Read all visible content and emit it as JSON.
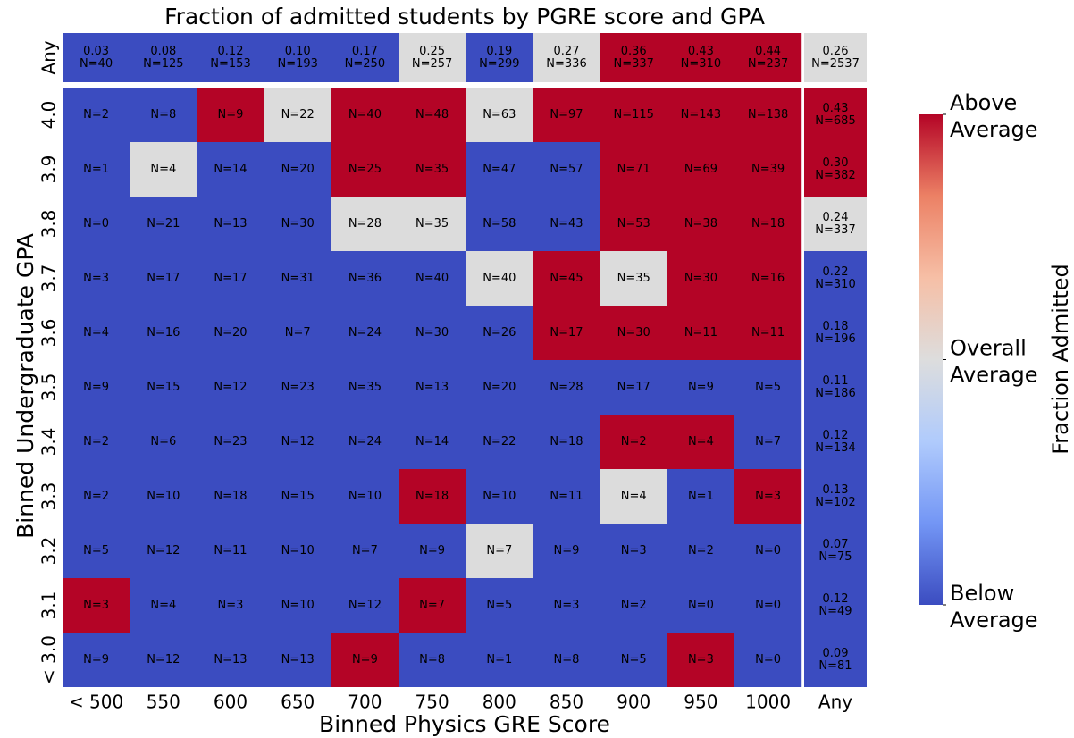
{
  "chart_data": {
    "type": "heatmap",
    "title": "Fraction of admitted students by PGRE score and GPA",
    "xlabel": "Binned Physics GRE Score",
    "ylabel": "Binned Undergraduate GPA",
    "x_categories": [
      "< 500",
      "550",
      "600",
      "650",
      "700",
      "750",
      "800",
      "850",
      "900",
      "950",
      "1000"
    ],
    "x_total_label": "Any",
    "y_categories": [
      "4.0",
      "3.9",
      "3.8",
      "3.7",
      "3.6",
      "3.5",
      "3.4",
      "3.3",
      "3.2",
      "3.1",
      "< 3.0"
    ],
    "y_total_label": "Any",
    "counts": [
      [
        2,
        8,
        9,
        22,
        40,
        48,
        63,
        97,
        115,
        143,
        138
      ],
      [
        1,
        4,
        14,
        20,
        25,
        35,
        47,
        57,
        71,
        69,
        39
      ],
      [
        0,
        21,
        13,
        30,
        28,
        35,
        58,
        43,
        53,
        38,
        18
      ],
      [
        3,
        17,
        17,
        31,
        36,
        40,
        40,
        45,
        35,
        30,
        16
      ],
      [
        4,
        16,
        20,
        7,
        24,
        30,
        26,
        17,
        30,
        11,
        11
      ],
      [
        9,
        15,
        12,
        23,
        35,
        13,
        20,
        28,
        17,
        9,
        5
      ],
      [
        2,
        6,
        23,
        12,
        24,
        14,
        22,
        18,
        2,
        4,
        7
      ],
      [
        2,
        10,
        18,
        15,
        10,
        18,
        10,
        11,
        4,
        1,
        3
      ],
      [
        5,
        12,
        11,
        10,
        7,
        9,
        7,
        9,
        3,
        2,
        0
      ],
      [
        3,
        4,
        3,
        10,
        12,
        7,
        5,
        3,
        2,
        0,
        0
      ],
      [
        9,
        12,
        13,
        13,
        9,
        8,
        1,
        8,
        5,
        3,
        0
      ]
    ],
    "count_labels": [
      [
        "N=2",
        "N=8",
        "N=9",
        "N=22",
        "N=40",
        "N=48",
        "N=63",
        "N=97",
        "N=115",
        "N=143",
        "N=138"
      ],
      [
        "N=1",
        "N=4",
        "N=14",
        "N=20",
        "N=25",
        "N=35",
        "N=47",
        "N=57",
        "N=71",
        "N=69",
        "N=39"
      ],
      [
        "N=0",
        "N=21",
        "N=13",
        "N=30",
        "N=28",
        "N=35",
        "N=58",
        "N=43",
        "N=53",
        "N=38",
        "N=18"
      ],
      [
        "N=3",
        "N=17",
        "N=17",
        "N=31",
        "N=36",
        "N=40",
        "N=40",
        "N=45",
        "N=35",
        "N=30",
        "N=16"
      ],
      [
        "N=4",
        "N=16",
        "N=20",
        "N=7",
        "N=24",
        "N=30",
        "N=26",
        "N=17",
        "N=30",
        "N=11",
        "N=11"
      ],
      [
        "N=9",
        "N=15",
        "N=12",
        "N=23",
        "N=35",
        "N=13",
        "N=20",
        "N=28",
        "N=17",
        "N=9",
        "N=5"
      ],
      [
        "N=2",
        "N=6",
        "N=23",
        "N=12",
        "N=24",
        "N=14",
        "N=22",
        "N=18",
        "N=2",
        "N=4",
        "N=7"
      ],
      [
        "N=2",
        "N=10",
        "N=18",
        "N=15",
        "N=10",
        "N=18",
        "N=10",
        "N=11",
        "N=4",
        "N=1",
        "N=3"
      ],
      [
        "N=5",
        "N=12",
        "N=11",
        "N=10",
        "N=7",
        "N=9",
        "N=7",
        "N=9",
        "N=3",
        "N=2",
        "N=0"
      ],
      [
        "N=3",
        "N=4",
        "N=3",
        "N=10",
        "N=12",
        "N=7",
        "N=5",
        "N=3",
        "N=2",
        "N=0",
        "N=0"
      ],
      [
        "N=9",
        "N=12",
        "N=13",
        "N=13",
        "N=9",
        "N=8",
        "N=1",
        "N=8",
        "N=5",
        "N=3",
        "N=0"
      ]
    ],
    "colors": [
      [
        "#3b4cc0",
        "#3b4cc0",
        "#b40426",
        "#dcdcdc",
        "#b40426",
        "#b40426",
        "#dcdcdc",
        "#b40426",
        "#b40426",
        "#b40426",
        "#b40426"
      ],
      [
        "#3b4cc0",
        "#dcdcdc",
        "#3b4cc0",
        "#3b4cc0",
        "#b40426",
        "#b40426",
        "#3b4cc0",
        "#3b4cc0",
        "#b40426",
        "#b40426",
        "#b40426"
      ],
      [
        "#3b4cc0",
        "#3b4cc0",
        "#3b4cc0",
        "#3b4cc0",
        "#dcdcdc",
        "#dcdcdc",
        "#3b4cc0",
        "#3b4cc0",
        "#b40426",
        "#b40426",
        "#b40426"
      ],
      [
        "#3b4cc0",
        "#3b4cc0",
        "#3b4cc0",
        "#3b4cc0",
        "#3b4cc0",
        "#3b4cc0",
        "#dcdcdc",
        "#b40426",
        "#dcdcdc",
        "#b40426",
        "#b40426"
      ],
      [
        "#3b4cc0",
        "#3b4cc0",
        "#3b4cc0",
        "#3b4cc0",
        "#3b4cc0",
        "#3b4cc0",
        "#3b4cc0",
        "#b40426",
        "#b40426",
        "#b40426",
        "#b40426"
      ],
      [
        "#3b4cc0",
        "#3b4cc0",
        "#3b4cc0",
        "#3b4cc0",
        "#3b4cc0",
        "#3b4cc0",
        "#3b4cc0",
        "#3b4cc0",
        "#3b4cc0",
        "#3b4cc0",
        "#3b4cc0"
      ],
      [
        "#3b4cc0",
        "#3b4cc0",
        "#3b4cc0",
        "#3b4cc0",
        "#3b4cc0",
        "#3b4cc0",
        "#3b4cc0",
        "#3b4cc0",
        "#b40426",
        "#b40426",
        "#3b4cc0"
      ],
      [
        "#3b4cc0",
        "#3b4cc0",
        "#3b4cc0",
        "#3b4cc0",
        "#3b4cc0",
        "#b40426",
        "#3b4cc0",
        "#3b4cc0",
        "#dcdcdc",
        "#3b4cc0",
        "#b40426"
      ],
      [
        "#3b4cc0",
        "#3b4cc0",
        "#3b4cc0",
        "#3b4cc0",
        "#3b4cc0",
        "#3b4cc0",
        "#dcdcdc",
        "#3b4cc0",
        "#3b4cc0",
        "#3b4cc0",
        "#3b4cc0"
      ],
      [
        "#b40426",
        "#3b4cc0",
        "#3b4cc0",
        "#3b4cc0",
        "#3b4cc0",
        "#b40426",
        "#3b4cc0",
        "#3b4cc0",
        "#3b4cc0",
        "#3b4cc0",
        "#3b4cc0"
      ],
      [
        "#3b4cc0",
        "#3b4cc0",
        "#3b4cc0",
        "#3b4cc0",
        "#b40426",
        "#3b4cc0",
        "#3b4cc0",
        "#3b4cc0",
        "#3b4cc0",
        "#b40426",
        "#3b4cc0"
      ]
    ],
    "col_totals": {
      "fractions": [
        0.03,
        0.08,
        0.12,
        0.1,
        0.17,
        0.25,
        0.19,
        0.27,
        0.36,
        0.43,
        0.44
      ],
      "fraction_labels": [
        "0.03",
        "0.08",
        "0.12",
        "0.10",
        "0.17",
        "0.25",
        "0.19",
        "0.27",
        "0.36",
        "0.43",
        "0.44"
      ],
      "counts": [
        40,
        125,
        153,
        193,
        250,
        257,
        299,
        336,
        337,
        310,
        237
      ],
      "count_labels": [
        "N=40",
        "N=125",
        "N=153",
        "N=193",
        "N=250",
        "N=257",
        "N=299",
        "N=336",
        "N=337",
        "N=310",
        "N=237"
      ],
      "colors": [
        "#3b4cc0",
        "#3b4cc0",
        "#3b4cc0",
        "#3b4cc0",
        "#3b4cc0",
        "#dcdcdc",
        "#3b4cc0",
        "#dcdcdc",
        "#b40426",
        "#b40426",
        "#b40426"
      ]
    },
    "row_totals": {
      "fractions": [
        0.43,
        0.3,
        0.24,
        0.22,
        0.18,
        0.11,
        0.12,
        0.13,
        0.07,
        0.12,
        0.09
      ],
      "fraction_labels": [
        "0.43",
        "0.30",
        "0.24",
        "0.22",
        "0.18",
        "0.11",
        "0.12",
        "0.13",
        "0.07",
        "0.12",
        "0.09"
      ],
      "counts": [
        685,
        382,
        337,
        310,
        196,
        186,
        134,
        102,
        75,
        49,
        81
      ],
      "count_labels": [
        "N=685",
        "N=382",
        "N=337",
        "N=310",
        "N=196",
        "N=186",
        "N=134",
        "N=102",
        "N=75",
        "N=49",
        "N=81"
      ],
      "colors": [
        "#b40426",
        "#b40426",
        "#dcdcdc",
        "#3b4cc0",
        "#3b4cc0",
        "#3b4cc0",
        "#3b4cc0",
        "#3b4cc0",
        "#3b4cc0",
        "#3b4cc0",
        "#3b4cc0"
      ]
    },
    "overall": {
      "fraction": 0.26,
      "count": 2537,
      "count_label": "N=2537",
      "color": "#dcdcdc"
    },
    "colorbar": {
      "label": "Fraction Admitted",
      "tick_labels": [
        [
          "Above",
          "Average"
        ],
        [
          "Overall",
          "Average"
        ],
        [
          "Below",
          "Average"
        ]
      ],
      "colors": [
        "#3b4cc0",
        "#7396f5",
        "#b0cbfc",
        "#dddddd",
        "#f6bfa6",
        "#ec8165",
        "#b40426"
      ]
    }
  }
}
